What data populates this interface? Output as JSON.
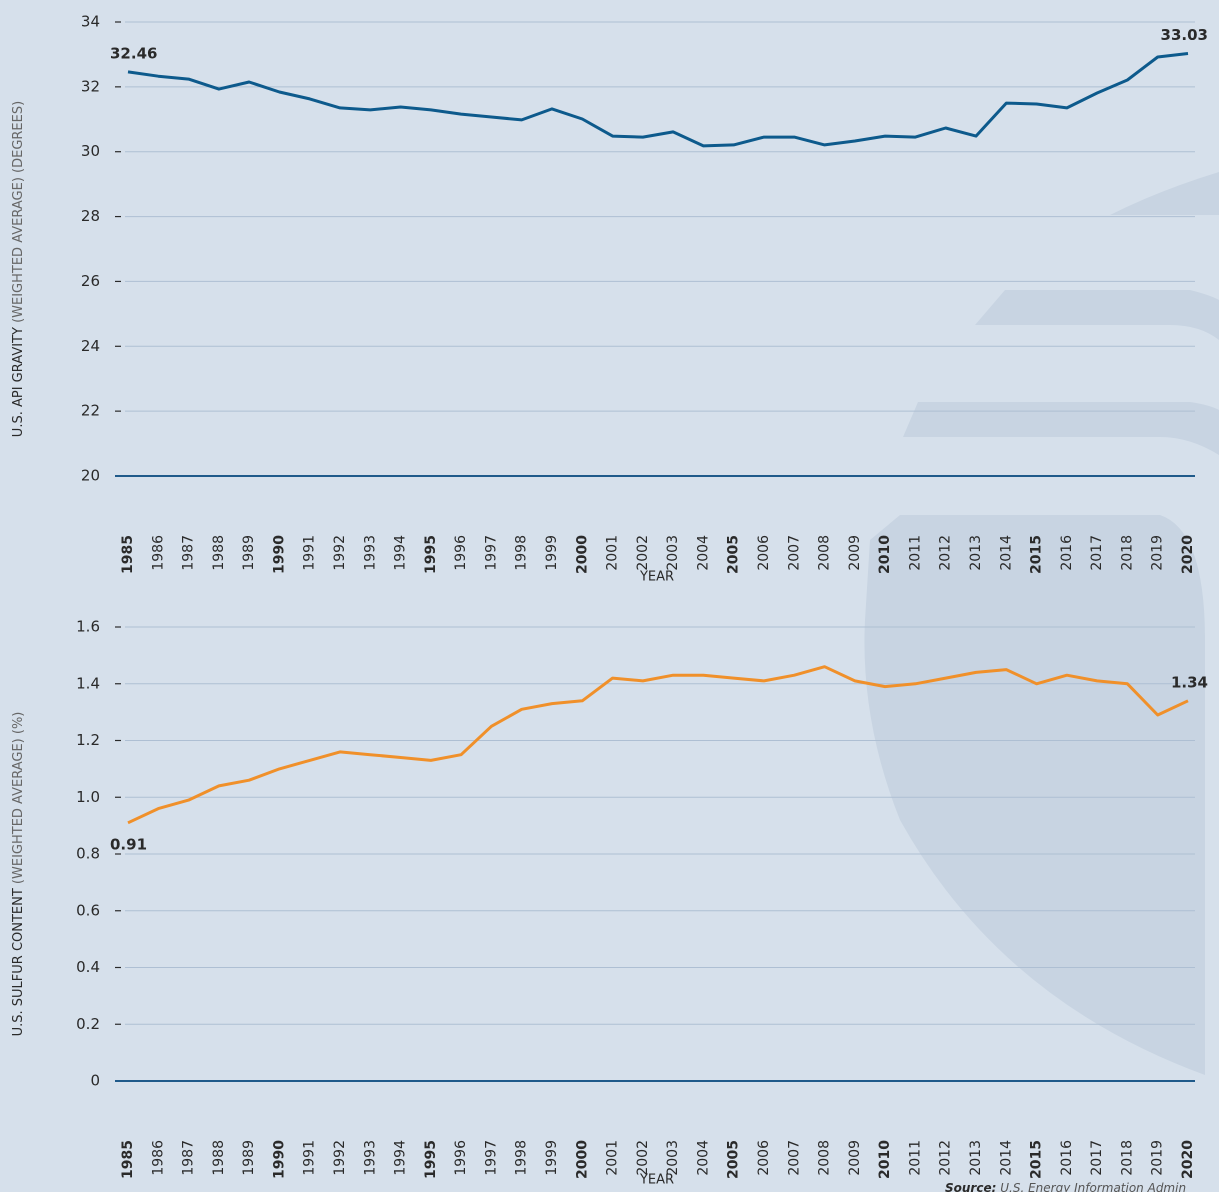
{
  "chart_data": [
    {
      "type": "line",
      "ylabel": "U.S. API GRAVITY",
      "ylabel_note": "(WEIGHTED AVERAGE) (DEGREES)",
      "xlabel": "YEAR",
      "categories": [
        "1985",
        "1986",
        "1987",
        "1988",
        "1989",
        "1990",
        "1991",
        "1992",
        "1993",
        "1994",
        "1995",
        "1996",
        "1997",
        "1998",
        "1999",
        "2000",
        "2001",
        "2002",
        "2003",
        "2004",
        "2005",
        "2006",
        "2007",
        "2008",
        "2009",
        "2010",
        "2011",
        "2012",
        "2013",
        "2014",
        "2015",
        "2016",
        "2017",
        "2018",
        "2019",
        "2020"
      ],
      "values": [
        32.46,
        32.33,
        32.24,
        31.93,
        32.15,
        31.84,
        31.63,
        31.35,
        31.29,
        31.38,
        31.29,
        31.16,
        31.07,
        30.98,
        31.32,
        31.01,
        30.48,
        30.45,
        30.61,
        30.18,
        30.21,
        30.45,
        30.45,
        30.21,
        30.33,
        30.48,
        30.45,
        30.73,
        30.48,
        31.5,
        31.47,
        31.35,
        31.81,
        32.21,
        32.92,
        33.03
      ],
      "color": "#0d5a8c",
      "ylim": [
        20,
        34
      ],
      "yticks": [
        20,
        22,
        24,
        26,
        28,
        30,
        32,
        34
      ],
      "grid": true
    },
    {
      "type": "line",
      "ylabel": "U.S. SULFUR CONTENT",
      "ylabel_note": "(WEIGHTED AVERAGE) (%)",
      "xlabel": "YEAR",
      "categories": [
        "1985",
        "1986",
        "1987",
        "1988",
        "1989",
        "1990",
        "1991",
        "1992",
        "1993",
        "1994",
        "1995",
        "1996",
        "1997",
        "1998",
        "1999",
        "2000",
        "2001",
        "2002",
        "2003",
        "2004",
        "2005",
        "2006",
        "2007",
        "2008",
        "2009",
        "2010",
        "2011",
        "2012",
        "2013",
        "2014",
        "2015",
        "2016",
        "2017",
        "2018",
        "2019",
        "2020"
      ],
      "values": [
        0.91,
        0.96,
        0.99,
        1.04,
        1.06,
        1.1,
        1.13,
        1.16,
        1.15,
        1.14,
        1.13,
        1.15,
        1.25,
        1.31,
        1.33,
        1.34,
        1.42,
        1.41,
        1.43,
        1.43,
        1.42,
        1.41,
        1.43,
        1.46,
        1.41,
        1.39,
        1.4,
        1.42,
        1.44,
        1.45,
        1.4,
        1.43,
        1.41,
        1.4,
        1.29,
        1.34
      ],
      "color": "#f0902a",
      "ylim": [
        0,
        1.6
      ],
      "yticks": [
        0,
        0.2,
        0.4,
        0.6,
        0.8,
        {
          "value": 1,
          "label": "1.0"
        },
        1.2,
        1.4,
        1.6
      ],
      "grid": true
    }
  ],
  "source": {
    "label": "Source:",
    "text": "U.S. Energy Information Admin"
  }
}
